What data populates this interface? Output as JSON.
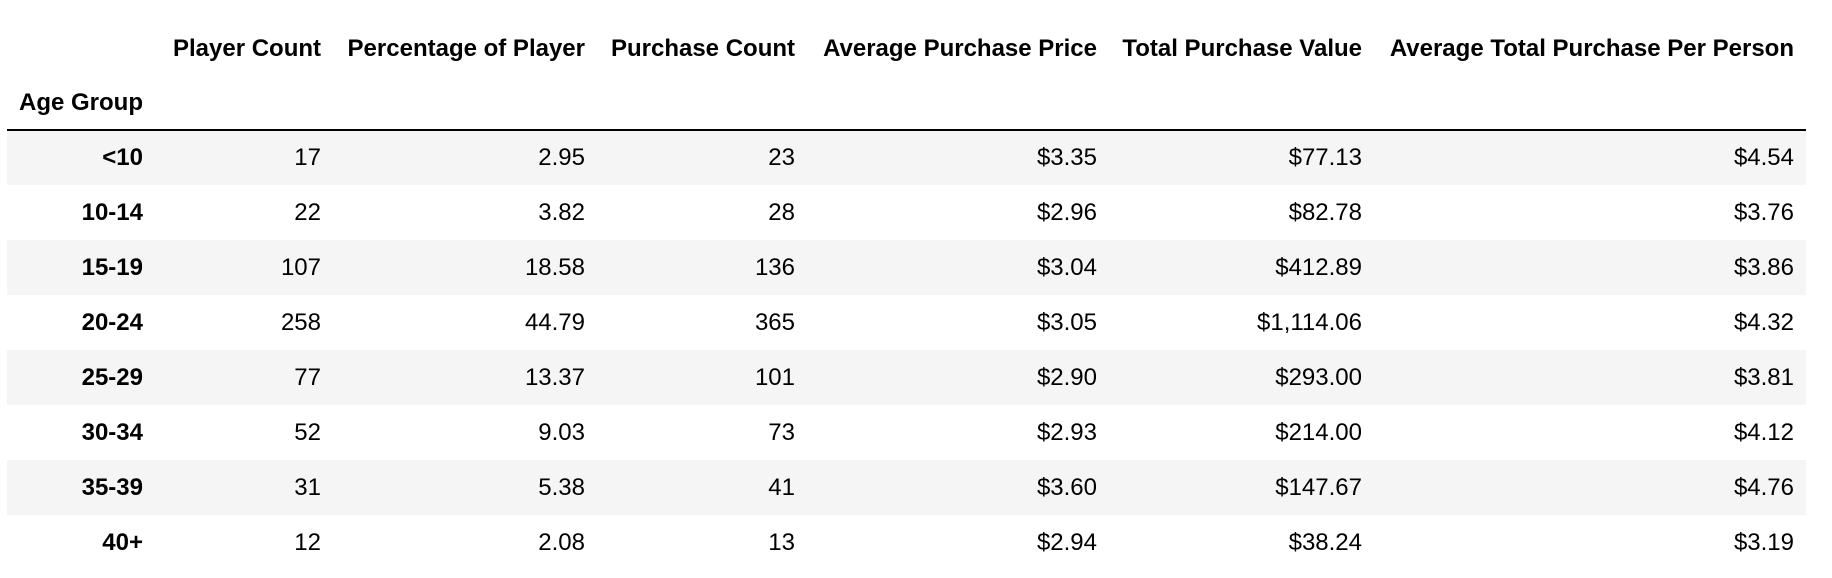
{
  "table": {
    "index_name": "Age Group",
    "columns": [
      "Player Count",
      "Percentage of Player",
      "Purchase Count",
      "Average Purchase Price",
      "Total Purchase Value",
      "Average Total Purchase Per Person"
    ],
    "rows": [
      {
        "index": "<10",
        "cells": [
          "17",
          "2.95",
          "23",
          "$3.35",
          "$77.13",
          "$4.54"
        ]
      },
      {
        "index": "10-14",
        "cells": [
          "22",
          "3.82",
          "28",
          "$2.96",
          "$82.78",
          "$3.76"
        ]
      },
      {
        "index": "15-19",
        "cells": [
          "107",
          "18.58",
          "136",
          "$3.04",
          "$412.89",
          "$3.86"
        ]
      },
      {
        "index": "20-24",
        "cells": [
          "258",
          "44.79",
          "365",
          "$3.05",
          "$1,114.06",
          "$4.32"
        ]
      },
      {
        "index": "25-29",
        "cells": [
          "77",
          "13.37",
          "101",
          "$2.90",
          "$293.00",
          "$3.81"
        ]
      },
      {
        "index": "30-34",
        "cells": [
          "52",
          "9.03",
          "73",
          "$2.93",
          "$214.00",
          "$4.12"
        ]
      },
      {
        "index": "35-39",
        "cells": [
          "31",
          "5.38",
          "41",
          "$3.60",
          "$147.67",
          "$4.76"
        ]
      },
      {
        "index": "40+",
        "cells": [
          "12",
          "2.08",
          "13",
          "$2.94",
          "$38.24",
          "$3.19"
        ]
      }
    ]
  }
}
